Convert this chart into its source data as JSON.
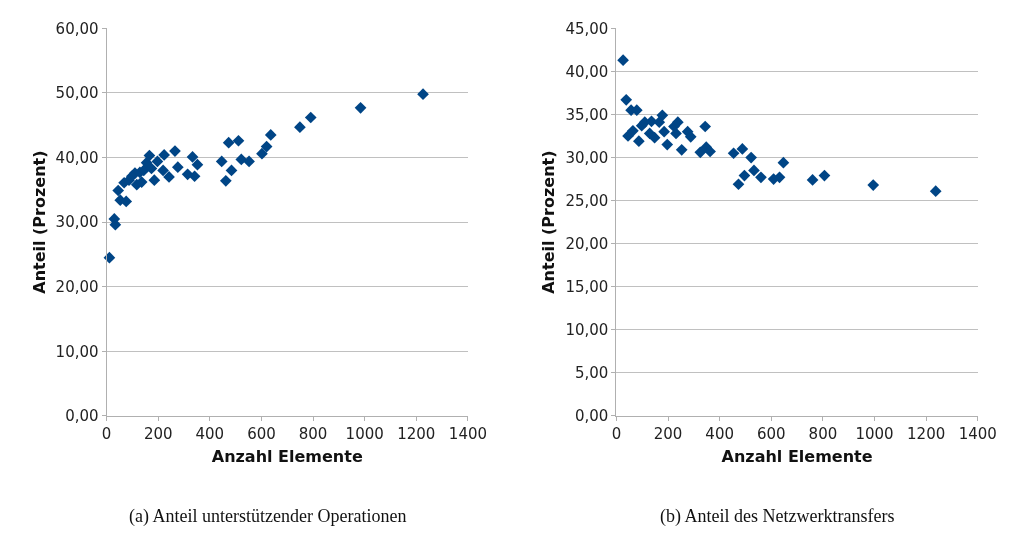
{
  "chart_data": [
    {
      "type": "scatter",
      "title": "(a) Anteil unterstützender Operationen",
      "xlabel": "Anzahl Elemente",
      "ylabel": "Anteil (Prozent)",
      "marker": "diamond",
      "grid": "y",
      "color": "#004586",
      "x": [
        11,
        30,
        34,
        45,
        53,
        76,
        68,
        87,
        98,
        110,
        117,
        136,
        129,
        144,
        155,
        166,
        174,
        185,
        197,
        208,
        219,
        223,
        242,
        265,
        276,
        314,
        333,
        341,
        352,
        446,
        462,
        473,
        484,
        511,
        522,
        552,
        602,
        620,
        636,
        749,
        791,
        984,
        1226
      ],
      "values": [
        24.5,
        30.5,
        29.6,
        34.9,
        33.4,
        33.2,
        36.1,
        36.5,
        37.1,
        37.6,
        35.8,
        36.2,
        37.7,
        38.0,
        39.2,
        40.3,
        38.3,
        36.5,
        39.4,
        null,
        38.0,
        40.4,
        37.0,
        41.0,
        38.5,
        37.4,
        40.1,
        37.1,
        38.9,
        39.4,
        36.4,
        42.3,
        38.0,
        42.6,
        39.7,
        39.4,
        40.6,
        41.7,
        43.5,
        44.7,
        46.2,
        47.7,
        49.8
      ],
      "xlim": [
        0,
        1400
      ],
      "xticks": [
        0,
        200,
        400,
        600,
        800,
        1000,
        1200,
        1400
      ],
      "ylim": [
        0,
        60
      ],
      "yticks": [
        {
          "value": 0,
          "label": "0,00"
        },
        {
          "value": 10,
          "label": "10,00"
        },
        {
          "value": 20,
          "label": "20,00"
        },
        {
          "value": 30,
          "label": "30,00"
        },
        {
          "value": 40,
          "label": "40,00"
        },
        {
          "value": 50,
          "label": "50,00"
        },
        {
          "value": 60,
          "label": "60,00"
        }
      ]
    },
    {
      "type": "scatter",
      "title": "(b) Anteil des Netzwerktransfers",
      "xlabel": "Anzahl Elemente",
      "ylabel": "Anteil (Prozent)",
      "marker": "diamond",
      "grid": "y",
      "color": "#004586",
      "x": [
        26,
        38,
        57,
        79,
        45,
        64,
        87,
        98,
        110,
        136,
        129,
        148,
        166,
        178,
        185,
        197,
        212,
        223,
        231,
        238,
        253,
        276,
        288,
        325,
        344,
        348,
        363,
        454,
        488,
        522,
        473,
        496,
        533,
        560,
        609,
        632,
        647,
        760,
        806,
        995,
        1237
      ],
      "values": [
        41.3,
        36.7,
        35.5,
        35.5,
        32.5,
        33.1,
        31.9,
        33.7,
        34.1,
        34.2,
        32.8,
        32.3,
        34.1,
        34.9,
        33.0,
        31.5,
        null,
        33.6,
        32.8,
        34.1,
        30.9,
        33.0,
        32.4,
        30.6,
        33.6,
        31.2,
        30.7,
        30.5,
        31.0,
        30.0,
        26.9,
        27.9,
        28.5,
        27.7,
        27.5,
        27.7,
        29.4,
        27.4,
        27.9,
        26.8,
        26.1
      ],
      "xlim": [
        0,
        1400
      ],
      "xticks": [
        0,
        200,
        400,
        600,
        800,
        1000,
        1200,
        1400
      ],
      "ylim": [
        0,
        45
      ],
      "yticks": [
        {
          "value": 0,
          "label": "0,00"
        },
        {
          "value": 5,
          "label": "5,00"
        },
        {
          "value": 10,
          "label": "10,00"
        },
        {
          "value": 15,
          "label": "15,00"
        },
        {
          "value": 20,
          "label": "20,00"
        },
        {
          "value": 25,
          "label": "25,00"
        },
        {
          "value": 30,
          "label": "30,00"
        },
        {
          "value": 35,
          "label": "35,00"
        },
        {
          "value": 40,
          "label": "40,00"
        },
        {
          "value": 45,
          "label": "45,00"
        }
      ]
    }
  ]
}
